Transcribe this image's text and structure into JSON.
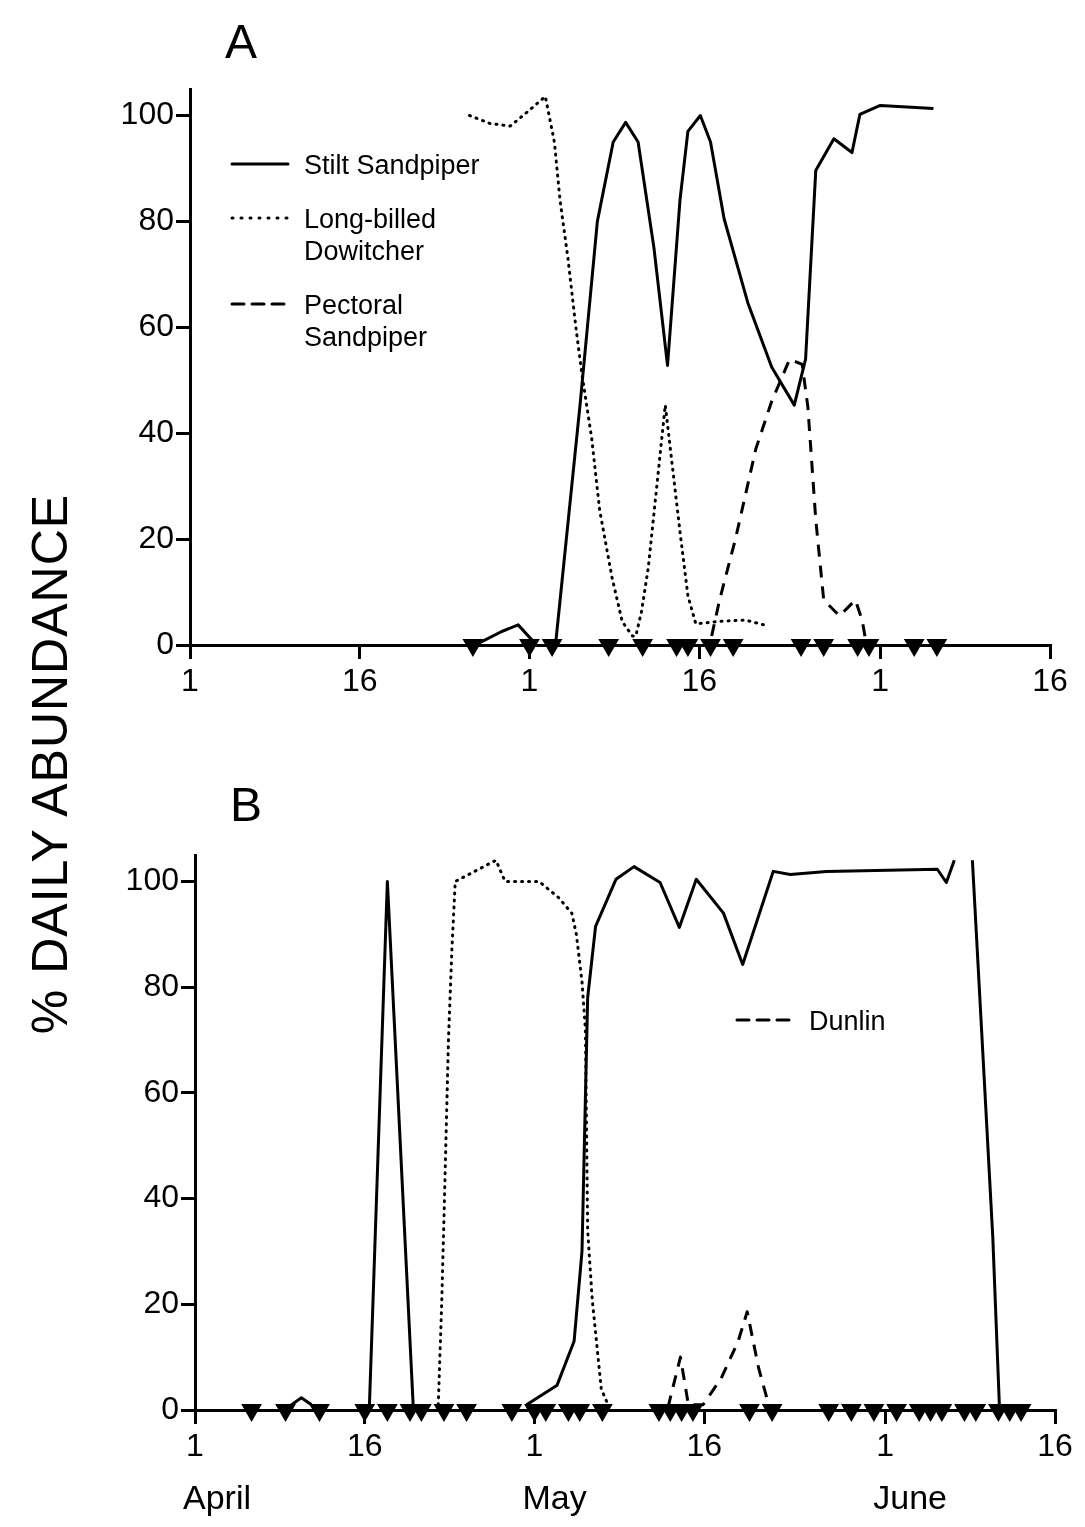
{
  "chart_data": [
    {
      "type": "line",
      "title": "A",
      "ylabel": "% DAILY ABUNDANCE",
      "xlim": [
        "--04-01",
        "--06-16"
      ],
      "ylim": [
        0,
        105
      ],
      "grid": false,
      "legend": "top left",
      "xticks": [
        {
          "value": "--04-01",
          "label": "1"
        },
        {
          "value": "--04-16",
          "label": "16"
        },
        {
          "value": "--05-01",
          "label": "1"
        },
        {
          "value": "--05-16",
          "label": "16"
        },
        {
          "value": "--06-01",
          "label": "1"
        },
        {
          "value": "--06-16",
          "label": "16"
        }
      ],
      "yticks": [
        0,
        20,
        40,
        60,
        80,
        100
      ],
      "series": [
        {
          "name": "Stilt Sandpiper",
          "color": "#000000",
          "line_style": "solid",
          "marker": "none",
          "x": [
            "--04-26T09:36",
            "--04-28T12:00",
            "--04-30",
            "--05-01T04:48",
            "--05-02",
            "--05-03T07:12",
            "--05-05T12:00",
            "--05-07",
            "--05-08T09:36",
            "--05-09T12:00",
            "--05-10T14:24",
            "--05-12",
            "--05-13T04:48",
            "--05-14T07:12",
            "--05-15",
            "--05-16T02:24",
            "--05-17",
            "--05-18T04:48",
            "--05-20T07:12",
            "--05-22T09:36",
            "--05-24T09:36",
            "--05-25T09:36",
            "--05-26T07:12",
            "--05-27T21:36",
            "--05-29T12:00",
            "--05-30T04:48",
            "--06-01",
            "--06-05T16:48"
          ],
          "values": [
            0.2,
            2.5,
            3.8,
            1,
            null,
            0,
            46,
            80,
            95,
            98.7,
            95,
            75,
            52.8,
            84,
            97,
            100,
            95,
            80.5,
            64.6,
            52.5,
            45.3,
            54,
            89.6,
            95.6,
            93,
            100.2,
            101.9,
            101.3
          ]
        },
        {
          "name": "Long-billed Dowitcher",
          "color": "#000000",
          "line_style": "dotted",
          "marker": "none",
          "x": [
            "--04-25T16:48",
            "--04-27T12:00",
            "--04-29T07:12",
            "--05-01",
            "--05-02T09:36",
            "--05-03T04:48",
            "--05-03T16:48",
            "--05-04T09:36",
            "--05-05T02:24",
            "--05-05T14:24",
            "--05-06T12:00",
            "--05-07T04:48",
            "--05-08T07:12",
            "--05-09T04:48",
            "--05-10T02:24",
            "--05-10T09:36",
            "--05-10T21:36",
            "--05-11T12:00",
            "--05-13",
            "--05-14T07:12",
            "--05-15",
            "--05-15T16:48",
            "--05-18",
            "--05-20T02:24",
            "--05-22T02:24"
          ],
          "values": [
            100,
            98.5,
            98,
            101,
            103.6,
            95,
            84,
            73,
            60,
            51.7,
            39,
            25.5,
            12.7,
            4.4,
            1.7,
            1.7,
            6.3,
            14.6,
            45.3,
            21.4,
            9.3,
            4,
            4.5,
            4.7,
            3.6
          ]
        },
        {
          "name": "Pectoral Sandpiper",
          "color": "#000000",
          "line_style": "dashed",
          "marker": "none",
          "x": [
            "--05-17T02:24",
            "--05-17T19:12",
            "--05-19T04:48",
            "--05-21",
            "--05-22T09:36",
            "--05-24",
            "--05-25T02:24",
            "--05-25T14:24",
            "--05-26T07:12",
            "--05-27",
            "--05-28T09:36",
            "--05-29T19:12",
            "--05-30T09:36",
            "--05-30T16:48"
          ],
          "values": [
            1.7,
            8.5,
            20,
            37,
            46,
            54,
            53,
            45,
            23.7,
            8.5,
            5.5,
            8.5,
            4.7,
            1
          ]
        },
        {
          "type": "scatter",
          "color": "#000000",
          "marker": "triangle",
          "x": [
            "--04-26",
            "--05-01",
            "--05-03",
            "--05-08",
            "--05-11",
            "--05-14",
            "--05-15",
            "--05-17",
            "--05-19",
            "--05-25",
            "--05-27",
            "--05-30",
            "--05-31",
            "--06-04",
            "--06-06"
          ],
          "values": [
            0,
            0,
            0,
            0,
            0,
            0,
            0,
            0,
            0,
            0,
            0,
            0,
            0,
            0,
            0
          ]
        }
      ]
    },
    {
      "type": "line",
      "title": "B",
      "xlim": [
        "--04-01",
        "--06-16"
      ],
      "ylim": [
        0,
        105
      ],
      "grid": false,
      "legend": "top right",
      "xticks": [
        {
          "value": "--04-01",
          "label": "1"
        },
        {
          "value": "--04-16",
          "label": "16"
        },
        {
          "value": "--05-01",
          "label": "1"
        },
        {
          "value": "--05-16",
          "label": "16"
        },
        {
          "value": "--06-01",
          "label": "1"
        },
        {
          "value": "--06-16",
          "label": "16"
        }
      ],
      "yticks": [
        0,
        20,
        40,
        60,
        80,
        100
      ],
      "annotations": [
        "April",
        "May",
        "June"
      ],
      "series": [
        {
          "color": "#000000",
          "line_style": "solid",
          "marker": "none",
          "x": [
            "--04-09T04:48",
            "--04-10T09:36",
            "--04-11T07:12",
            "--04-13",
            "--04-16T09:36",
            "--04-18",
            "--04-20T07:12",
            "--04-25",
            "--04-30T07:12",
            "--05-03",
            "--05-04T12:00",
            "--05-05T04:48",
            "--05-05T12:00",
            "--05-05T16:48",
            "--05-06T09:36",
            "--05-08T04:48",
            "--05-09T19:12",
            "--05-12T02:24",
            "--05-13T19:12",
            "--05-15T07:12",
            "--05-17T16:48",
            "--05-19T09:36",
            "--05-22T02:24",
            "--05-23T14:24",
            "--05-26T19:12",
            "--06-05T14:24",
            "--06-06T09:36",
            "--06-07T02:24",
            "--06-07T21:36",
            "--06-08T16:48",
            "--06-10T12:00",
            "--06-11T02:24"
          ],
          "values": [
            0.5,
            2.3,
            1,
            null,
            0,
            100,
            0,
            null,
            1,
            4.7,
            13,
            30,
            59,
            78,
            91.5,
            100.4,
            102.8,
            99.8,
            91.3,
            100.4,
            94,
            84.3,
            101.9,
            101.3,
            101.9,
            102.3,
            99.8,
            104,
            null,
            104,
            32.8,
            0
          ]
        },
        {
          "color": "#000000",
          "line_style": "dotted",
          "marker": "none",
          "x": [
            "--04-22T12:00",
            "--04-22T19:12",
            "--04-23",
            "--04-23T04:48",
            "--04-23T09:36",
            "--04-23T16:48",
            "--04-24",
            "--04-27T14:24",
            "--04-28T09:36",
            "--05-01T09:36",
            "--05-03T02:24",
            "--05-04T07:12",
            "--05-04T16:48",
            "--05-05T04:48",
            "--05-05T12:00",
            "--05-05T16:48",
            "--05-06T02:24",
            "--05-06T21:36",
            "--05-07T12:00"
          ],
          "values": [
            1,
            20,
            36,
            53,
            70,
            87,
            100,
            104,
            100,
            100,
            97,
            94,
            90,
            81,
            72,
            34,
            21,
            4,
            1
          ]
        },
        {
          "name": "Dunlin",
          "color": "#000000",
          "line_style": "dashed",
          "marker": "none",
          "x": [
            "--05-12T19:12",
            "--05-13T21:36",
            "--05-14T14:24",
            "--05-15T21:36",
            "--05-17T12:00",
            "--05-19",
            "--05-19T19:12",
            "--05-20T19:12",
            "--05-21T16:48"
          ],
          "values": [
            0.5,
            10,
            1,
            1,
            6,
            13,
            18.6,
            8,
            1
          ]
        },
        {
          "type": "scatter",
          "color": "#000000",
          "marker": "triangle",
          "x": [
            "--04-06",
            "--04-09",
            "--04-12",
            "--04-16",
            "--04-18",
            "--04-20",
            "--04-21",
            "--04-23",
            "--04-25",
            "--04-29",
            "--05-01",
            "--05-02",
            "--05-04",
            "--05-05",
            "--05-07",
            "--05-12",
            "--05-13",
            "--05-14",
            "--05-15",
            "--05-20",
            "--05-22",
            "--05-27",
            "--05-29",
            "--05-31",
            "--06-02",
            "--06-04",
            "--06-05",
            "--06-06",
            "--06-08",
            "--06-09",
            "--06-11",
            "--06-12",
            "--06-13"
          ],
          "values": [
            0,
            0,
            0,
            0,
            0,
            0,
            0,
            0,
            0,
            0,
            0,
            0,
            0,
            0,
            0,
            0,
            0,
            0,
            0,
            0,
            0,
            0,
            0,
            0,
            0,
            0,
            0,
            0,
            0,
            0,
            0,
            0,
            0
          ]
        }
      ]
    }
  ]
}
